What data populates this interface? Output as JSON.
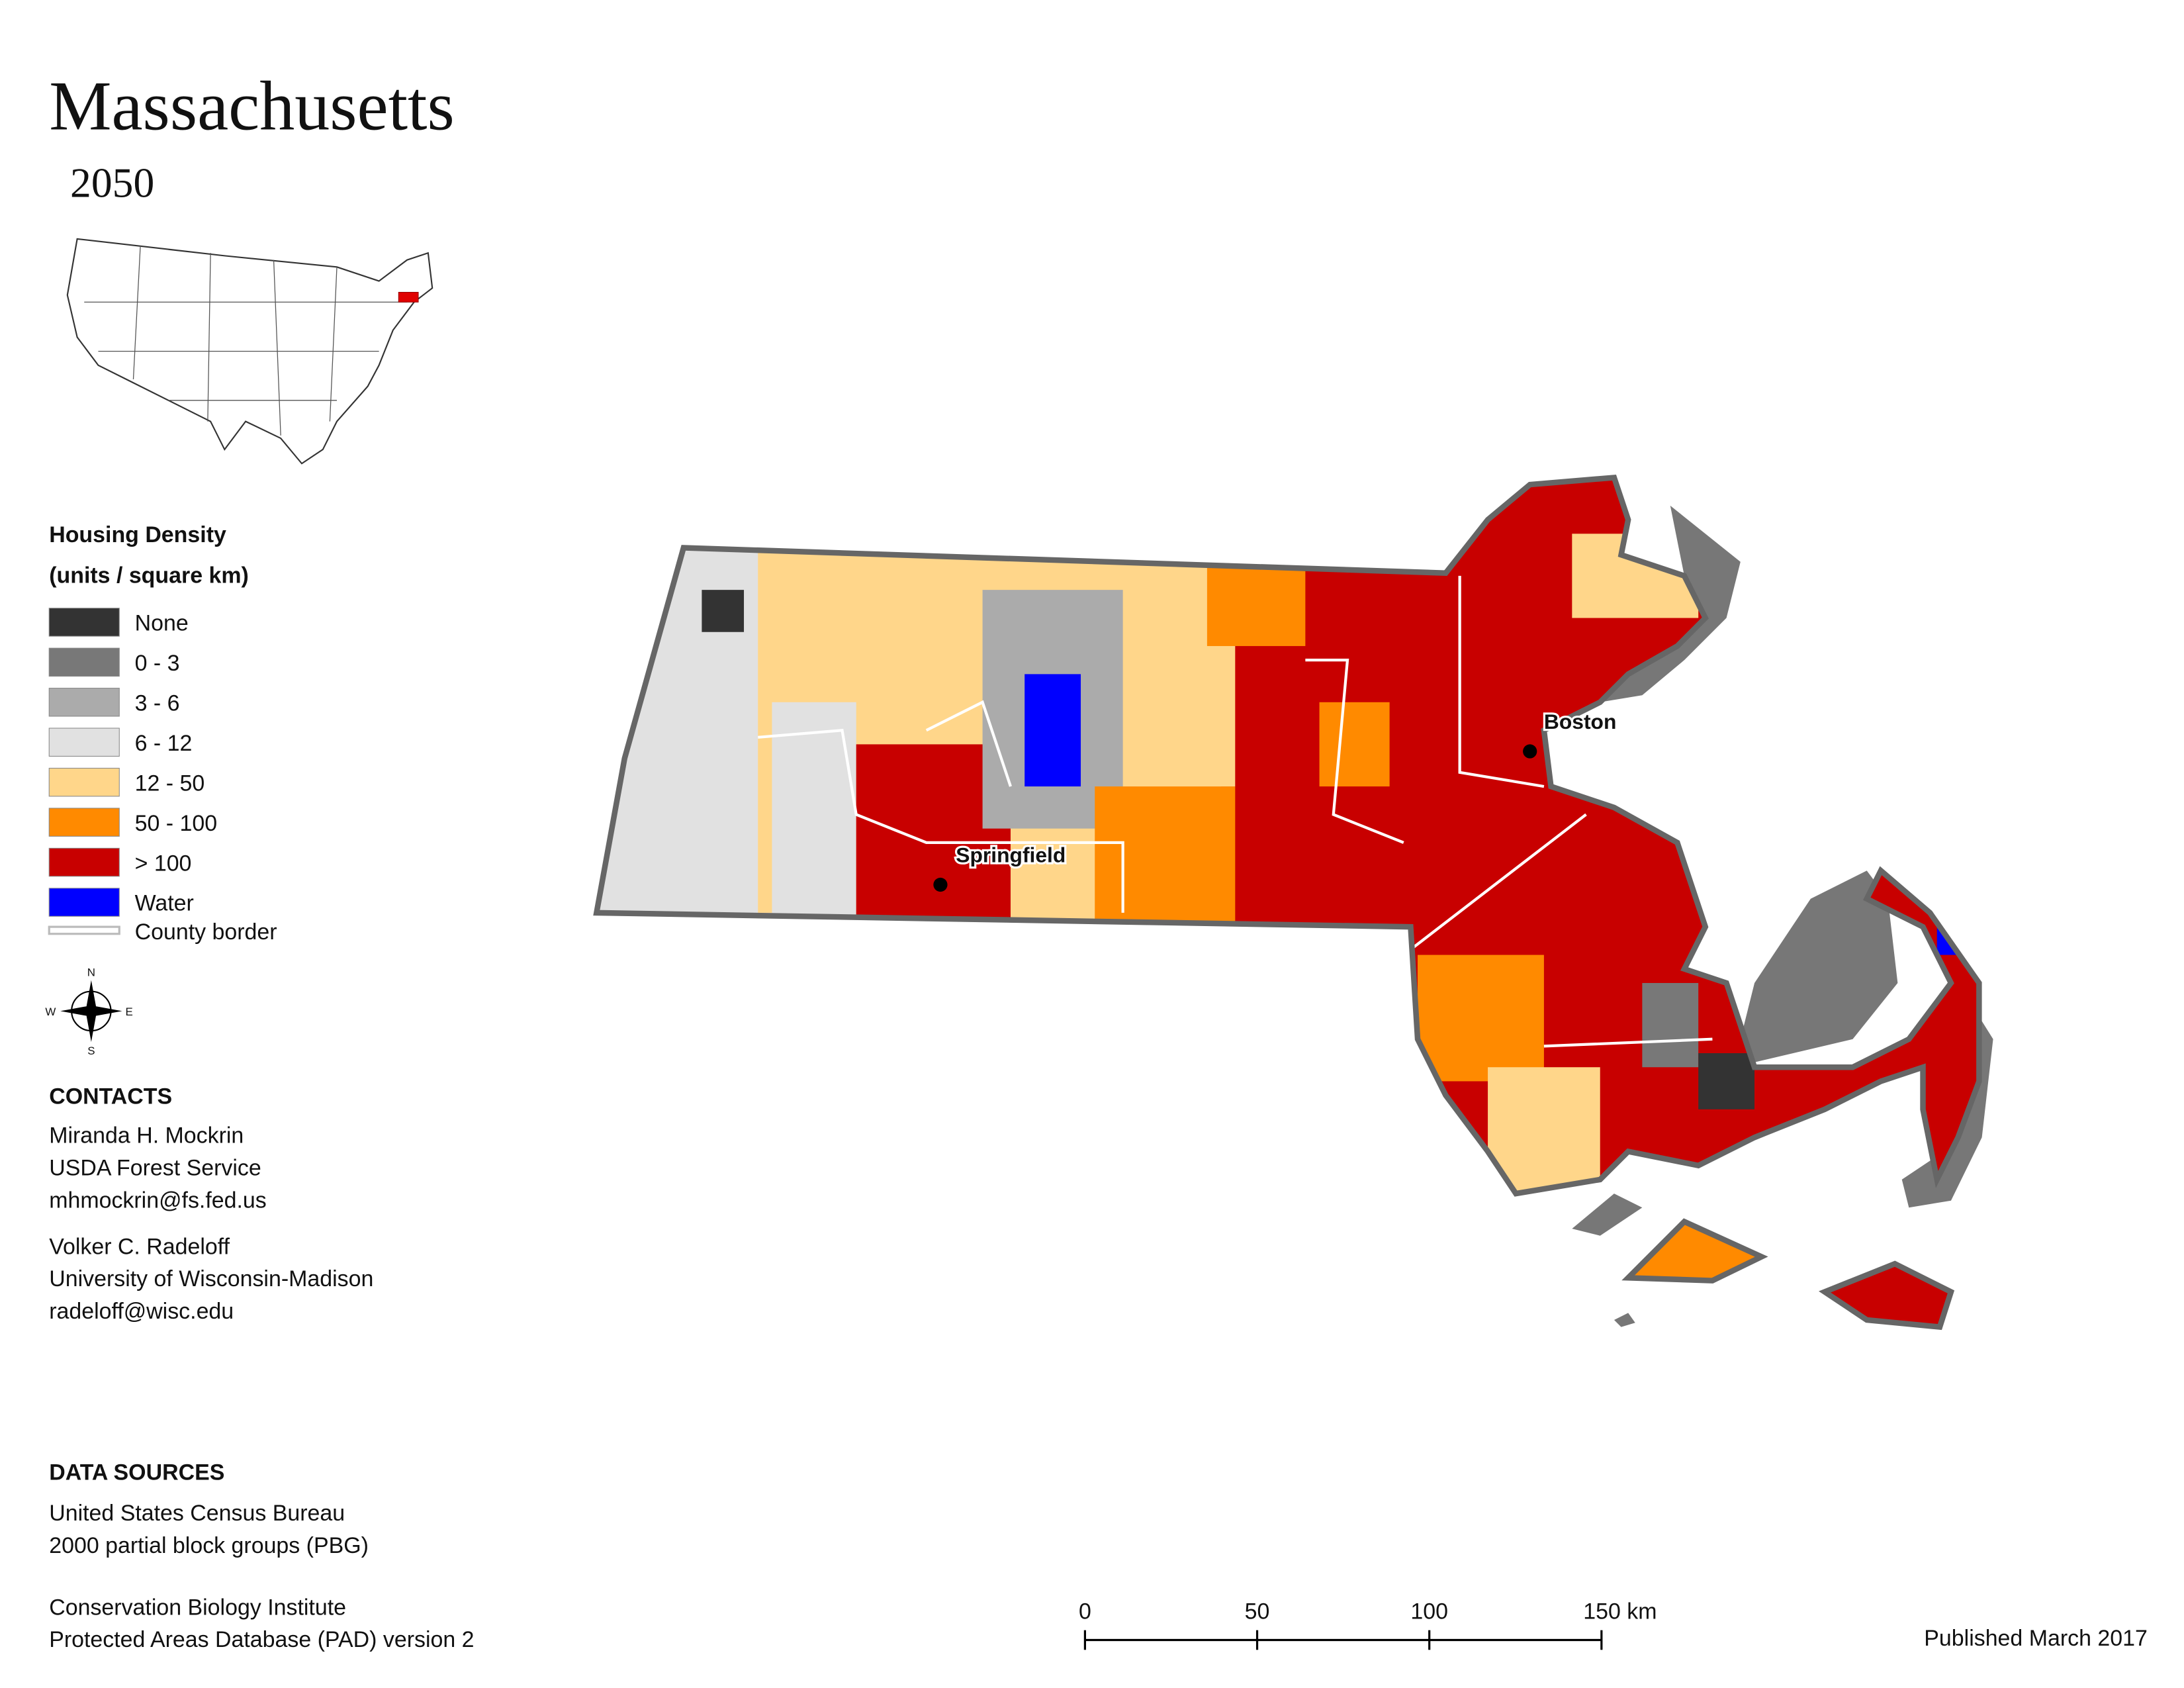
{
  "header": {
    "title": "Massachusetts",
    "subtitle": "2050"
  },
  "legend": {
    "title": "Housing Density",
    "subtitle": "(units / square km)",
    "items": [
      {
        "label": "None",
        "color": "#333333"
      },
      {
        "label": "0 - 3",
        "color": "#787878"
      },
      {
        "label": "3 - 6",
        "color": "#ababab"
      },
      {
        "label": "6 - 12",
        "color": "#e1e1e1"
      },
      {
        "label": "12 - 50",
        "color": "#ffd68a"
      },
      {
        "label": "50 - 100",
        "color": "#ff8a00"
      },
      {
        "label": "> 100",
        "color": "#c80000"
      },
      {
        "label": "Water",
        "color": "#0000ff"
      }
    ],
    "border_label": "County border"
  },
  "cities": [
    {
      "label": "Boston"
    },
    {
      "label": "Springfield"
    }
  ],
  "contacts": {
    "title": "CONTACTS",
    "people": [
      [
        "Miranda H. Mockrin",
        "USDA Forest Service",
        "mhmockrin@fs.fed.us"
      ],
      [
        "Volker C. Radeloff",
        "University of Wisconsin-Madison",
        "radeloff@wisc.edu"
      ]
    ]
  },
  "sources": {
    "title": "DATA SOURCES",
    "entries": [
      [
        "United States Census Bureau",
        "2000 partial block groups (PBG)"
      ],
      [
        "Conservation Biology Institute",
        "Protected Areas Database (PAD) version 2"
      ]
    ]
  },
  "scale_bar": {
    "ticks": [
      0,
      50,
      100,
      {
        "value": 150,
        "label": "150 km"
      }
    ]
  },
  "footer": {
    "published": "Published March 2017"
  }
}
